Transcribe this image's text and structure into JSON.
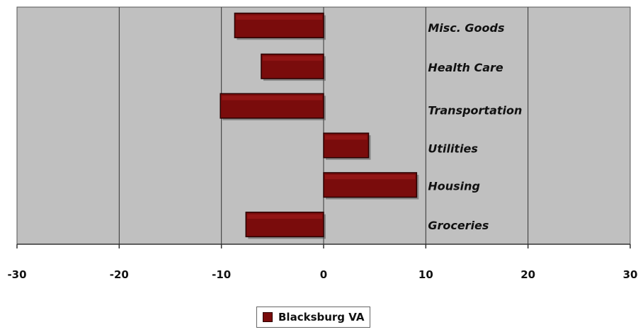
{
  "chart_data": {
    "type": "bar",
    "orientation": "horizontal",
    "categories": [
      "Misc. Goods",
      "Health Care",
      "Transportation",
      "Utilities",
      "Housing",
      "Groceries"
    ],
    "series": [
      {
        "name": "Blacksburg VA",
        "values": [
          -8.7,
          -6.1,
          -10.1,
          4.4,
          9.1,
          -7.6
        ]
      }
    ],
    "xlim": [
      -30,
      30
    ],
    "xticks": [
      "-30",
      "-20",
      "-10",
      "0",
      "10",
      "20",
      "30"
    ],
    "grid": true,
    "legend_position": "bottom",
    "title": "",
    "xlabel": "",
    "ylabel": ""
  },
  "colors": {
    "plot_background": "#c0c0c0",
    "bar_fill": "#7a0c0c",
    "bar_highlight": "#a51d1d",
    "gridline": "#333333"
  }
}
